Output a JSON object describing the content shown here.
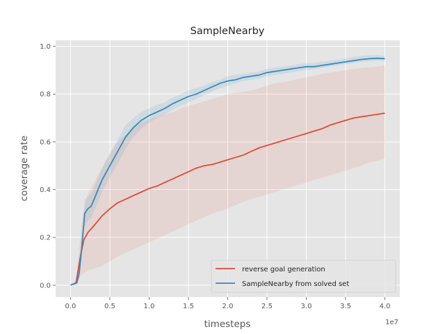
{
  "chart_data": {
    "type": "line",
    "title": "SampleNearby",
    "xlabel": "timesteps",
    "ylabel": "coverage rate",
    "x_offset_text": "1e7",
    "xlim": [
      -1.9,
      41.9
    ],
    "ylim": [
      -0.05,
      1.025
    ],
    "x_ticks": [
      0,
      5,
      10,
      15,
      20,
      25,
      30,
      35,
      40
    ],
    "x_tick_labels": [
      "0.0",
      "0.5",
      "1.0",
      "1.5",
      "2.0",
      "2.5",
      "3.0",
      "3.5",
      "4.0"
    ],
    "y_ticks": [
      0.0,
      0.2,
      0.4,
      0.6,
      0.8,
      1.0
    ],
    "y_tick_labels": [
      "0.0",
      "0.2",
      "0.4",
      "0.6",
      "0.8",
      "1.0"
    ],
    "grid": true,
    "legend_position": "lower-right",
    "series": [
      {
        "name": "reverse goal generation",
        "color": "#e24a33",
        "x": [
          0,
          0.7,
          1.0,
          1.3,
          1.7,
          2.2,
          3.0,
          4.0,
          5.0,
          6.0,
          7.0,
          8.0,
          9.0,
          10.0,
          11.0,
          12.0,
          13.0,
          14.0,
          15.0,
          16.0,
          17.0,
          18.0,
          19.0,
          20.0,
          21.0,
          22.0,
          23.0,
          24.0,
          25.0,
          26.0,
          27.0,
          28.0,
          29.0,
          30.0,
          31.0,
          32.0,
          33.0,
          34.0,
          35.0,
          36.0,
          37.0,
          38.0,
          39.0,
          40.0
        ],
        "y": [
          0.0,
          0.01,
          0.07,
          0.13,
          0.19,
          0.22,
          0.25,
          0.29,
          0.32,
          0.345,
          0.36,
          0.375,
          0.39,
          0.405,
          0.415,
          0.43,
          0.445,
          0.46,
          0.475,
          0.49,
          0.5,
          0.505,
          0.515,
          0.525,
          0.535,
          0.545,
          0.56,
          0.575,
          0.585,
          0.595,
          0.605,
          0.615,
          0.625,
          0.635,
          0.645,
          0.655,
          0.67,
          0.68,
          0.69,
          0.7,
          0.705,
          0.71,
          0.715,
          0.72
        ],
        "band_lower": [
          0.0,
          0.0,
          0.02,
          0.04,
          0.05,
          0.06,
          0.07,
          0.08,
          0.1,
          0.12,
          0.135,
          0.15,
          0.165,
          0.18,
          0.195,
          0.21,
          0.225,
          0.24,
          0.255,
          0.27,
          0.285,
          0.3,
          0.31,
          0.32,
          0.335,
          0.35,
          0.36,
          0.37,
          0.38,
          0.39,
          0.4,
          0.41,
          0.42,
          0.43,
          0.44,
          0.45,
          0.46,
          0.47,
          0.48,
          0.49,
          0.5,
          0.515,
          0.52,
          0.53
        ],
        "band_upper": [
          0.0,
          0.02,
          0.12,
          0.22,
          0.32,
          0.38,
          0.43,
          0.49,
          0.55,
          0.6,
          0.63,
          0.66,
          0.68,
          0.695,
          0.705,
          0.715,
          0.725,
          0.74,
          0.75,
          0.76,
          0.77,
          0.78,
          0.79,
          0.8,
          0.805,
          0.81,
          0.815,
          0.825,
          0.835,
          0.845,
          0.85,
          0.855,
          0.865,
          0.87,
          0.875,
          0.885,
          0.89,
          0.895,
          0.9,
          0.905,
          0.91,
          0.912,
          0.915,
          0.92
        ]
      },
      {
        "name": "SampleNearby from solved set",
        "color": "#348abd",
        "x": [
          0,
          0.8,
          1.1,
          1.4,
          1.8,
          2.2,
          2.6,
          3.0,
          3.5,
          4.0,
          5.0,
          6.0,
          7.0,
          8.0,
          9.0,
          10.0,
          11.0,
          12.0,
          13.0,
          14.0,
          15.0,
          16.0,
          17.0,
          18.0,
          19.0,
          20.0,
          21.0,
          22.0,
          23.0,
          24.0,
          25.0,
          26.0,
          27.0,
          28.0,
          29.0,
          30.0,
          31.0,
          32.0,
          33.0,
          34.0,
          35.0,
          36.0,
          37.0,
          38.0,
          39.0,
          40.0
        ],
        "y": [
          0.0,
          0.01,
          0.05,
          0.15,
          0.3,
          0.32,
          0.33,
          0.36,
          0.4,
          0.44,
          0.5,
          0.56,
          0.62,
          0.66,
          0.69,
          0.71,
          0.725,
          0.74,
          0.76,
          0.775,
          0.79,
          0.8,
          0.815,
          0.83,
          0.845,
          0.855,
          0.86,
          0.87,
          0.875,
          0.88,
          0.89,
          0.895,
          0.9,
          0.905,
          0.91,
          0.915,
          0.915,
          0.92,
          0.925,
          0.93,
          0.935,
          0.94,
          0.945,
          0.948,
          0.95,
          0.948
        ],
        "band_lower": [
          0.0,
          0.0,
          0.03,
          0.11,
          0.24,
          0.27,
          0.28,
          0.31,
          0.35,
          0.39,
          0.45,
          0.51,
          0.57,
          0.62,
          0.655,
          0.68,
          0.7,
          0.715,
          0.735,
          0.75,
          0.765,
          0.78,
          0.795,
          0.81,
          0.825,
          0.835,
          0.845,
          0.855,
          0.86,
          0.865,
          0.875,
          0.88,
          0.885,
          0.89,
          0.895,
          0.9,
          0.905,
          0.91,
          0.915,
          0.92,
          0.925,
          0.93,
          0.935,
          0.938,
          0.94,
          0.94
        ],
        "band_upper": [
          0.0,
          0.02,
          0.07,
          0.19,
          0.36,
          0.37,
          0.38,
          0.41,
          0.45,
          0.49,
          0.55,
          0.61,
          0.67,
          0.7,
          0.725,
          0.74,
          0.755,
          0.765,
          0.785,
          0.8,
          0.815,
          0.825,
          0.835,
          0.85,
          0.86,
          0.875,
          0.88,
          0.885,
          0.89,
          0.895,
          0.905,
          0.91,
          0.915,
          0.92,
          0.925,
          0.93,
          0.93,
          0.935,
          0.94,
          0.945,
          0.95,
          0.955,
          0.96,
          0.962,
          0.963,
          0.96
        ]
      }
    ]
  }
}
